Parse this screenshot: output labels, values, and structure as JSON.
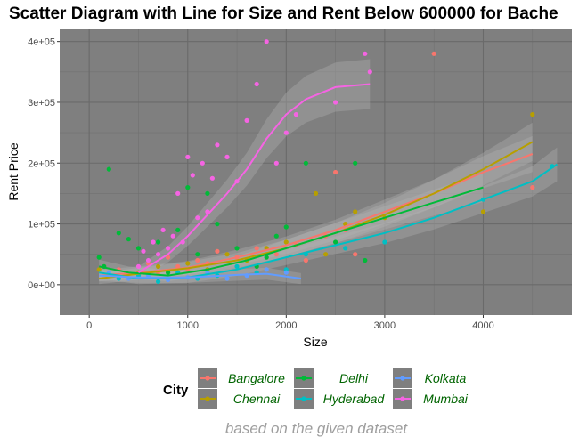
{
  "chart_data": {
    "type": "scatter",
    "title": "Scatter Diagram with Line for Size and Rent Below 600000 for Bache",
    "xlabel": "Size",
    "ylabel": "Rent Price",
    "xlim": [
      -300,
      4900
    ],
    "ylim": [
      -50000,
      420000
    ],
    "x_ticks": [
      0,
      1000,
      2000,
      3000,
      4000
    ],
    "x_tick_labels": [
      "0",
      "1000",
      "2000",
      "3000",
      "4000"
    ],
    "y_ticks": [
      0,
      100000,
      200000,
      300000,
      400000
    ],
    "y_tick_labels": [
      "0e+00",
      "1e+05",
      "2e+05",
      "3e+05",
      "4e+05"
    ],
    "grid": true,
    "legend_title": "City",
    "legend_position": "bottom",
    "caption": "based on the given dataset",
    "series": [
      {
        "name": "Bangalore",
        "color": "#F8766D",
        "points": [
          [
            150,
            30000
          ],
          [
            300,
            25000
          ],
          [
            400,
            18000
          ],
          [
            600,
            35000
          ],
          [
            700,
            20000
          ],
          [
            800,
            45000
          ],
          [
            900,
            30000
          ],
          [
            1000,
            25000
          ],
          [
            1100,
            40000
          ],
          [
            1200,
            35000
          ],
          [
            1300,
            55000
          ],
          [
            1500,
            45000
          ],
          [
            1700,
            60000
          ],
          [
            1900,
            50000
          ],
          [
            2100,
            65000
          ],
          [
            2200,
            40000
          ],
          [
            2400,
            80000
          ],
          [
            2500,
            185000
          ],
          [
            2600,
            90000
          ],
          [
            2700,
            50000
          ],
          [
            3500,
            380000
          ],
          [
            4500,
            160000
          ]
        ],
        "fit": [
          [
            100,
            15000
          ],
          [
            500,
            20000
          ],
          [
            1000,
            28000
          ],
          [
            1500,
            45000
          ],
          [
            2000,
            65000
          ],
          [
            2500,
            90000
          ],
          [
            3000,
            120000
          ],
          [
            3500,
            150000
          ],
          [
            4000,
            185000
          ],
          [
            4500,
            215000
          ]
        ]
      },
      {
        "name": "Chennai",
        "color": "#B79F00",
        "points": [
          [
            100,
            25000
          ],
          [
            200,
            15000
          ],
          [
            500,
            20000
          ],
          [
            700,
            30000
          ],
          [
            1000,
            35000
          ],
          [
            1200,
            25000
          ],
          [
            1400,
            50000
          ],
          [
            1600,
            40000
          ],
          [
            1800,
            60000
          ],
          [
            2000,
            70000
          ],
          [
            2300,
            150000
          ],
          [
            2400,
            50000
          ],
          [
            2600,
            100000
          ],
          [
            2700,
            120000
          ],
          [
            3000,
            110000
          ],
          [
            4000,
            120000
          ],
          [
            4500,
            280000
          ]
        ],
        "fit": [
          [
            100,
            10000
          ],
          [
            500,
            18000
          ],
          [
            1000,
            27000
          ],
          [
            1500,
            40000
          ],
          [
            2000,
            60000
          ],
          [
            2500,
            85000
          ],
          [
            3000,
            115000
          ],
          [
            3500,
            150000
          ],
          [
            4000,
            190000
          ],
          [
            4500,
            235000
          ]
        ]
      },
      {
        "name": "Delhi",
        "color": "#00BA38",
        "points": [
          [
            100,
            45000
          ],
          [
            150,
            30000
          ],
          [
            200,
            190000
          ],
          [
            300,
            85000
          ],
          [
            400,
            75000
          ],
          [
            500,
            60000
          ],
          [
            600,
            40000
          ],
          [
            700,
            70000
          ],
          [
            800,
            20000
          ],
          [
            900,
            90000
          ],
          [
            1000,
            160000
          ],
          [
            1100,
            50000
          ],
          [
            1200,
            150000
          ],
          [
            1300,
            100000
          ],
          [
            1500,
            60000
          ],
          [
            1700,
            30000
          ],
          [
            1800,
            45000
          ],
          [
            1900,
            80000
          ],
          [
            2000,
            95000
          ],
          [
            2200,
            200000
          ],
          [
            2500,
            70000
          ],
          [
            2700,
            200000
          ],
          [
            2800,
            40000
          ]
        ],
        "fit": [
          [
            100,
            30000
          ],
          [
            400,
            20000
          ],
          [
            800,
            15000
          ],
          [
            1200,
            25000
          ],
          [
            1600,
            40000
          ],
          [
            2000,
            60000
          ],
          [
            2500,
            85000
          ],
          [
            3000,
            110000
          ],
          [
            3500,
            135000
          ],
          [
            4000,
            160000
          ]
        ]
      },
      {
        "name": "Hyderabad",
        "color": "#00BFC4",
        "points": [
          [
            300,
            10000
          ],
          [
            500,
            15000
          ],
          [
            700,
            5000
          ],
          [
            900,
            20000
          ],
          [
            1100,
            10000
          ],
          [
            1300,
            15000
          ],
          [
            1500,
            30000
          ],
          [
            1700,
            20000
          ],
          [
            2000,
            25000
          ],
          [
            2200,
            50000
          ],
          [
            2600,
            60000
          ],
          [
            3000,
            70000
          ],
          [
            4000,
            140000
          ],
          [
            4700,
            195000
          ]
        ],
        "fit": [
          [
            100,
            20000
          ],
          [
            500,
            10000
          ],
          [
            1000,
            12000
          ],
          [
            1500,
            25000
          ],
          [
            2000,
            45000
          ],
          [
            2500,
            65000
          ],
          [
            3000,
            85000
          ],
          [
            3500,
            110000
          ],
          [
            4000,
            140000
          ],
          [
            4500,
            170000
          ],
          [
            4750,
            198000
          ]
        ]
      },
      {
        "name": "Kolkata",
        "color": "#619CFF",
        "points": [
          [
            200,
            20000
          ],
          [
            400,
            10000
          ],
          [
            600,
            15000
          ],
          [
            800,
            8000
          ],
          [
            1000,
            12000
          ],
          [
            1200,
            20000
          ],
          [
            1400,
            10000
          ],
          [
            1600,
            15000
          ],
          [
            1800,
            25000
          ],
          [
            2000,
            20000
          ]
        ],
        "fit": [
          [
            100,
            15000
          ],
          [
            500,
            12000
          ],
          [
            1000,
            12000
          ],
          [
            1500,
            16000
          ],
          [
            1800,
            18000
          ],
          [
            2150,
            10000
          ]
        ]
      },
      {
        "name": "Mumbai",
        "color": "#F564E3",
        "points": [
          [
            500,
            30000
          ],
          [
            550,
            55000
          ],
          [
            600,
            40000
          ],
          [
            650,
            70000
          ],
          [
            700,
            50000
          ],
          [
            750,
            90000
          ],
          [
            800,
            60000
          ],
          [
            850,
            80000
          ],
          [
            900,
            150000
          ],
          [
            950,
            70000
          ],
          [
            1000,
            210000
          ],
          [
            1050,
            180000
          ],
          [
            1100,
            110000
          ],
          [
            1150,
            200000
          ],
          [
            1200,
            120000
          ],
          [
            1250,
            175000
          ],
          [
            1300,
            230000
          ],
          [
            1400,
            210000
          ],
          [
            1500,
            170000
          ],
          [
            1600,
            270000
          ],
          [
            1700,
            330000
          ],
          [
            1800,
            400000
          ],
          [
            1900,
            200000
          ],
          [
            2000,
            250000
          ],
          [
            2100,
            280000
          ],
          [
            2500,
            300000
          ],
          [
            2800,
            380000
          ],
          [
            2850,
            350000
          ]
        ],
        "fit": [
          [
            500,
            20000
          ],
          [
            800,
            50000
          ],
          [
            1000,
            80000
          ],
          [
            1200,
            115000
          ],
          [
            1400,
            150000
          ],
          [
            1600,
            190000
          ],
          [
            1800,
            240000
          ],
          [
            2000,
            280000
          ],
          [
            2200,
            305000
          ],
          [
            2500,
            325000
          ],
          [
            2850,
            330000
          ]
        ]
      }
    ]
  }
}
